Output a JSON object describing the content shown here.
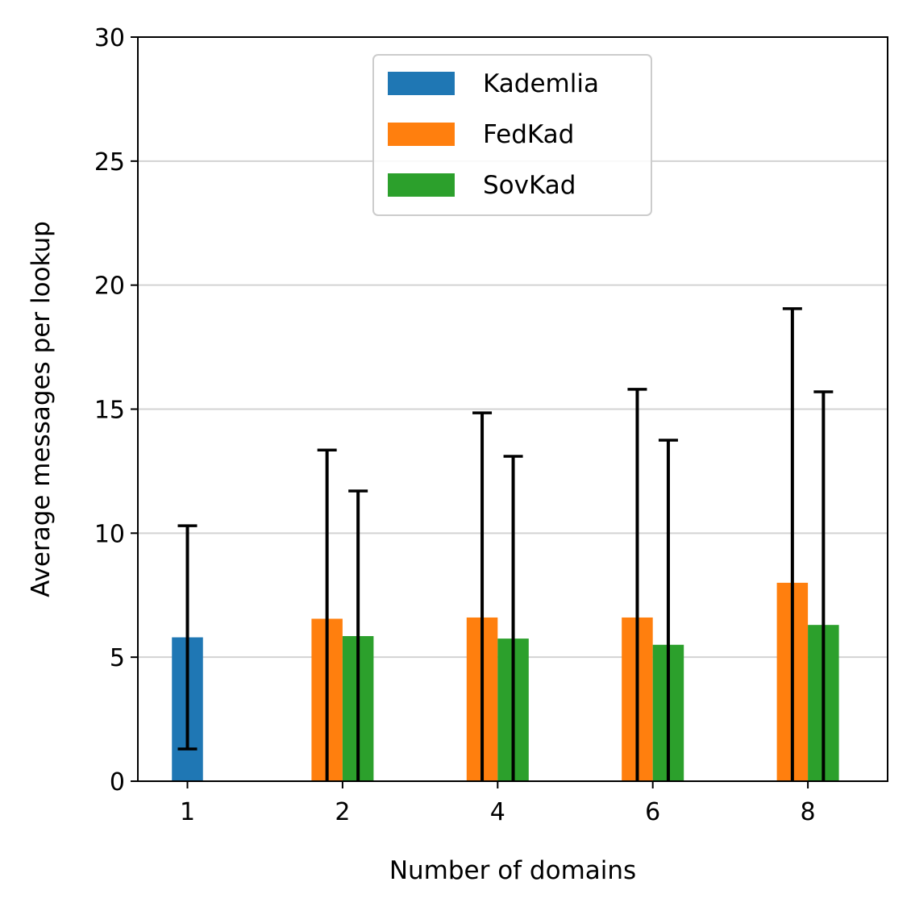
{
  "chart_data": {
    "type": "bar",
    "title": "",
    "xlabel": "Number of domains",
    "ylabel": "Average messages per lookup",
    "categories": [
      "1",
      "2",
      "4",
      "6",
      "8"
    ],
    "ylim": [
      0,
      30
    ],
    "yticks": [
      "0",
      "5",
      "10",
      "15",
      "20",
      "25",
      "30"
    ],
    "grid": "horizontal",
    "legend_position": "upper-center",
    "series": [
      {
        "name": "Kademlia",
        "color": "#1f77b4",
        "values": [
          5.8,
          null,
          null,
          null,
          null
        ],
        "error_low": [
          1.3,
          null,
          null,
          null,
          null
        ],
        "error_high": [
          10.3,
          null,
          null,
          null,
          null
        ]
      },
      {
        "name": "FedKad",
        "color": "#ff7f0e",
        "values": [
          null,
          6.55,
          6.6,
          6.6,
          8.0
        ],
        "error_low": [
          null,
          0,
          0,
          0,
          0
        ],
        "error_high": [
          null,
          13.35,
          14.85,
          15.8,
          19.05
        ]
      },
      {
        "name": "SovKad",
        "color": "#2ca02c",
        "values": [
          null,
          5.85,
          5.75,
          5.5,
          6.3
        ],
        "error_low": [
          null,
          0,
          0,
          0,
          0
        ],
        "error_high": [
          null,
          11.7,
          13.1,
          13.75,
          15.7
        ]
      }
    ]
  }
}
